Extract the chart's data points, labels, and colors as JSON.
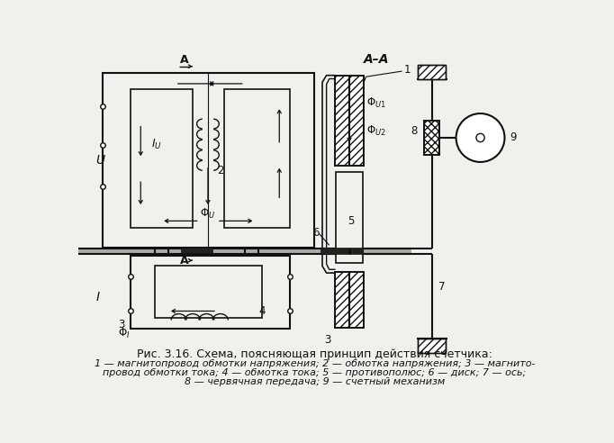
{
  "title": "Рис. 3.16. Схема, поясняющая принцип действия счетчика:",
  "cap1": "1 — магнитопровод обмотки напряжения; 2 — обмотка напряжения; 3 — магнито-",
  "cap2": "провод обмотки тока; 4 — обмотка тока; 5 — противополюс; 6 — диск; 7 — ось;",
  "cap3": "8 — червячная передача; 9 — счетный механизм",
  "bg": "#f0f0ec",
  "lc": "#111111"
}
